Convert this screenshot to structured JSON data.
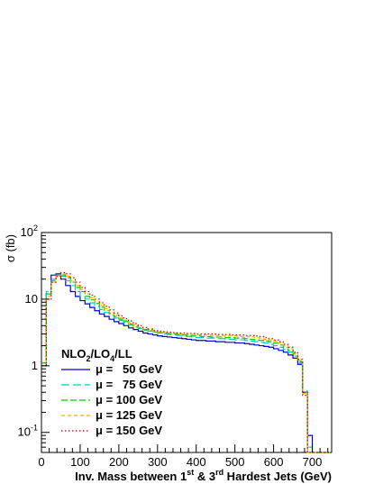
{
  "chart_data": {
    "type": "line",
    "style": "step-histogram",
    "xlabel_parts": [
      "Inv. Mass between 1",
      "st",
      " & 3",
      "rd",
      " Hardest Jets (GeV)"
    ],
    "ylabel": "σ (fb)",
    "xlim": [
      0,
      750
    ],
    "ylim": [
      0.05,
      100
    ],
    "y_scale": "log",
    "grid": false,
    "legend_position": "bottom-left",
    "legend_header_parts": [
      "NLO",
      "2",
      "/LO",
      "4",
      "/LL"
    ],
    "x_ticks": [
      {
        "value": 0,
        "label": "0"
      },
      {
        "value": 100,
        "label": "100"
      },
      {
        "value": 200,
        "label": "200"
      },
      {
        "value": 300,
        "label": "300"
      },
      {
        "value": 400,
        "label": "400"
      },
      {
        "value": 500,
        "label": "500"
      },
      {
        "value": 600,
        "label": "600"
      },
      {
        "value": 700,
        "label": "700"
      }
    ],
    "y_ticks": [
      {
        "value": 0.1,
        "base": "10",
        "exp": "-1"
      },
      {
        "value": 1,
        "base": "1",
        "exp": ""
      },
      {
        "value": 10,
        "base": "10",
        "exp": ""
      },
      {
        "value": 100,
        "base": "10",
        "exp": "2"
      }
    ],
    "bin_edges": [
      0,
      12.5,
      25,
      37.5,
      50,
      62.5,
      75,
      87.5,
      100,
      112.5,
      125,
      137.5,
      150,
      162.5,
      175,
      187.5,
      200,
      212.5,
      225,
      237.5,
      250,
      262.5,
      275,
      287.5,
      300,
      312.5,
      325,
      337.5,
      350,
      362.5,
      375,
      387.5,
      400,
      412.5,
      425,
      437.5,
      450,
      462.5,
      475,
      487.5,
      500,
      512.5,
      525,
      537.5,
      550,
      562.5,
      575,
      587.5,
      600,
      612.5,
      625,
      637.5,
      650,
      662.5,
      675,
      687.5,
      700,
      712.5,
      725,
      737.5,
      750
    ],
    "series": [
      {
        "name": "μ =   50 GeV",
        "color": "#0000cc",
        "dash": "solid",
        "values": [
          1.0,
          12,
          23,
          24,
          20,
          16,
          13,
          11,
          9.5,
          8.5,
          7.5,
          6.7,
          6.0,
          5.5,
          5.0,
          4.6,
          4.3,
          4.0,
          3.7,
          3.5,
          3.3,
          3.1,
          3.0,
          2.9,
          2.8,
          2.75,
          2.7,
          2.65,
          2.6,
          2.55,
          2.5,
          2.45,
          2.4,
          2.4,
          2.35,
          2.35,
          2.3,
          2.3,
          2.25,
          2.25,
          2.2,
          2.2,
          2.15,
          2.1,
          2.05,
          2.0,
          1.95,
          1.9,
          1.8,
          1.7,
          1.6,
          1.45,
          1.3,
          1.05,
          0.4,
          0.09,
          0.05,
          0.05,
          0.05,
          0.05
        ]
      },
      {
        "name": "μ =   75 GeV",
        "color": "#00cccc",
        "dash": "long",
        "values": [
          1.1,
          13,
          20,
          23,
          22,
          19,
          16,
          13,
          11,
          10,
          8.8,
          7.8,
          7.0,
          6.3,
          5.7,
          5.2,
          4.8,
          4.4,
          4.1,
          3.8,
          3.6,
          3.4,
          3.3,
          3.2,
          3.1,
          3.0,
          2.95,
          2.9,
          2.85,
          2.8,
          2.75,
          2.7,
          2.65,
          2.65,
          2.6,
          2.6,
          2.55,
          2.55,
          2.5,
          2.5,
          2.45,
          2.45,
          2.4,
          2.35,
          2.3,
          2.25,
          2.2,
          2.1,
          2.0,
          1.9,
          1.75,
          1.6,
          1.4,
          1.1,
          0.42,
          0.06,
          0.05,
          0.05,
          0.05,
          0.05
        ]
      },
      {
        "name": "μ = 100 GeV",
        "color": "#00cc00",
        "dash": "medium",
        "values": [
          1.1,
          12,
          19,
          23,
          23,
          21,
          18,
          15,
          13,
          11,
          9.8,
          8.6,
          7.6,
          6.8,
          6.1,
          5.5,
          5.0,
          4.6,
          4.2,
          3.9,
          3.7,
          3.5,
          3.35,
          3.25,
          3.15,
          3.1,
          3.05,
          3.0,
          2.95,
          2.9,
          2.85,
          2.8,
          2.8,
          2.75,
          2.75,
          2.7,
          2.7,
          2.7,
          2.65,
          2.65,
          2.6,
          2.6,
          2.55,
          2.5,
          2.45,
          2.4,
          2.35,
          2.3,
          2.2,
          2.05,
          1.9,
          1.7,
          1.5,
          1.15,
          0.4,
          0.05,
          0.05,
          0.05,
          0.05,
          0.05
        ]
      },
      {
        "name": "μ = 125 GeV",
        "color": "#ffaa00",
        "dash": "short",
        "values": [
          1.0,
          11,
          18,
          22,
          24,
          22,
          19,
          16,
          14,
          12,
          10.5,
          9.2,
          8.1,
          7.2,
          6.4,
          5.8,
          5.2,
          4.8,
          4.4,
          4.1,
          3.8,
          3.6,
          3.45,
          3.3,
          3.2,
          3.15,
          3.1,
          3.05,
          3.0,
          3.0,
          2.95,
          2.95,
          2.9,
          2.9,
          2.9,
          2.85,
          2.85,
          2.85,
          2.8,
          2.8,
          2.8,
          2.75,
          2.75,
          2.7,
          2.65,
          2.6,
          2.5,
          2.45,
          2.35,
          2.2,
          2.0,
          1.8,
          1.55,
          1.2,
          0.38,
          0.05,
          0.05,
          0.05,
          0.05,
          0.05
        ]
      },
      {
        "name": "μ = 150 GeV",
        "color": "#cc0000",
        "dash": "dotted",
        "values": [
          1.0,
          10,
          18,
          22,
          25,
          24,
          21,
          18,
          15,
          13,
          11.5,
          10,
          8.8,
          7.8,
          6.9,
          6.2,
          5.6,
          5.1,
          4.7,
          4.3,
          4.0,
          3.75,
          3.55,
          3.4,
          3.3,
          3.25,
          3.2,
          3.15,
          3.1,
          3.1,
          3.05,
          3.05,
          3.0,
          3.0,
          3.0,
          3.0,
          2.95,
          2.95,
          2.95,
          2.9,
          2.9,
          2.9,
          2.85,
          2.85,
          2.8,
          2.75,
          2.65,
          2.55,
          2.45,
          2.3,
          2.1,
          1.9,
          1.6,
          1.25,
          0.36,
          0.05,
          0.05,
          0.05,
          0.05,
          0.05
        ]
      }
    ]
  }
}
